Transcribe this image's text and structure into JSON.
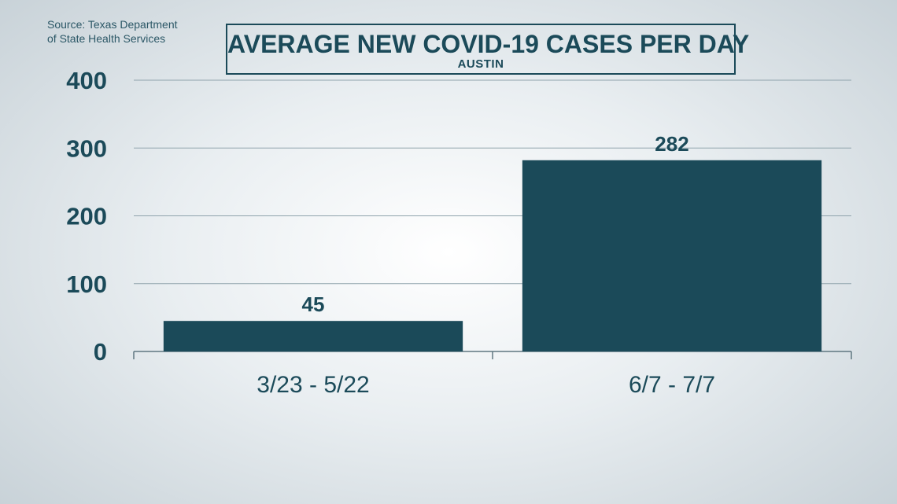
{
  "source_line1": "Source: Texas Department",
  "source_line2": "of State Health Services",
  "chart_data": {
    "type": "bar",
    "title": "AVERAGE NEW COVID-19 CASES PER DAY",
    "subtitle": "AUSTIN",
    "categories": [
      "3/23 - 5/22",
      "6/7 - 7/7"
    ],
    "values": [
      45,
      282
    ],
    "data_labels": [
      "45",
      "282"
    ],
    "ylim": [
      0,
      400
    ],
    "yticks": [
      0,
      100,
      200,
      300,
      400
    ],
    "grid": true,
    "bar_color": "#1b4a59",
    "xlabel": "",
    "ylabel": ""
  }
}
